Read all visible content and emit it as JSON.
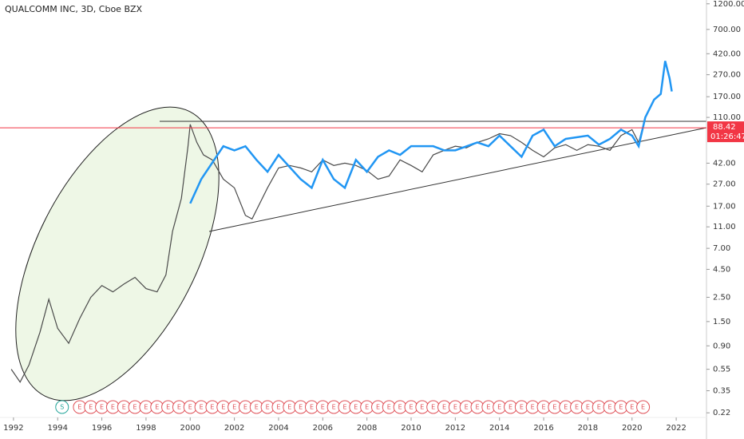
{
  "chart_data": {
    "type": "line",
    "title": "QUALCOMM INC, 3D, Cboe BZX",
    "log_scale": true,
    "xlim": [
      1991.39,
      2023.37
    ],
    "ylim": [
      0.15,
      1300
    ],
    "xticks": [
      1992,
      1994,
      1996,
      1998,
      2000,
      2002,
      2004,
      2006,
      2008,
      2010,
      2012,
      2014,
      2016,
      2018,
      2020,
      2022
    ],
    "yticks": [
      {
        "value": 0.22,
        "label": "0.22"
      },
      {
        "value": 0.35,
        "label": "0.35"
      },
      {
        "value": 0.55,
        "label": "0.55"
      },
      {
        "value": 0.9,
        "label": "0.90"
      },
      {
        "value": 1.5,
        "label": "1.50"
      },
      {
        "value": 2.5,
        "label": "2.50"
      },
      {
        "value": 4.5,
        "label": "4.50"
      },
      {
        "value": 7,
        "label": "7.00"
      },
      {
        "value": 11,
        "label": "11.00"
      },
      {
        "value": 17,
        "label": "17.00"
      },
      {
        "value": 27,
        "label": "27.00"
      },
      {
        "value": 42,
        "label": "42.00"
      },
      {
        "value": 110,
        "label": "110.00"
      },
      {
        "value": 170,
        "label": "170.00"
      },
      {
        "value": 270,
        "label": "270.00"
      },
      {
        "value": 420,
        "label": "420.00"
      },
      {
        "value": 700,
        "label": "700.00"
      },
      {
        "value": 1200,
        "label": "1200.00"
      }
    ],
    "series": [
      {
        "color": "#4a4a4a",
        "x": [
          1991.9,
          1992.3,
          1992.7,
          1993.2,
          1993.6,
          1994.0,
          1994.5,
          1995.0,
          1995.5,
          1996.0,
          1996.5,
          1997.0,
          1997.5,
          1998.0,
          1998.5,
          1998.9,
          1999.2,
          1999.6,
          1999.9,
          2000.0,
          2000.3,
          2000.6,
          2001.0,
          2001.5,
          2002.0,
          2002.5,
          2002.8,
          2003.5,
          2004.0,
          2004.5,
          2005.0,
          2005.5,
          2006.0,
          2006.5,
          2007.0,
          2007.5,
          2008.0,
          2008.5,
          2009.0,
          2009.5,
          2010.0,
          2010.5,
          2011.0,
          2011.5,
          2012.0,
          2012.5,
          2013.0,
          2013.5,
          2014.0,
          2014.5,
          2015.0,
          2015.5,
          2016.0,
          2016.5,
          2017.0,
          2017.5,
          2018.0,
          2018.5,
          2019.0,
          2019.5,
          2020.0,
          2020.3,
          2020.6
        ],
        "values": [
          0.55,
          0.42,
          0.6,
          1.2,
          2.4,
          1.3,
          0.95,
          1.6,
          2.5,
          3.2,
          2.8,
          3.3,
          3.8,
          3.0,
          2.8,
          4.0,
          10,
          20,
          60,
          95,
          65,
          50,
          45,
          30,
          25,
          14,
          13,
          25,
          38,
          40,
          38,
          35,
          45,
          40,
          42,
          40,
          36,
          30,
          32,
          45,
          40,
          35,
          50,
          55,
          60,
          58,
          65,
          70,
          78,
          75,
          65,
          55,
          48,
          58,
          62,
          55,
          62,
          60,
          55,
          75,
          85,
          65,
          110
        ]
      },
      {
        "color": "#2196f3",
        "x": [
          2000.0,
          2000.5,
          2001.5,
          2002.0,
          2002.5,
          2003.0,
          2003.5,
          2004.0,
          2005.0,
          2005.5,
          2006.0,
          2006.5,
          2007.0,
          2007.5,
          2008.0,
          2008.5,
          2009.0,
          2009.5,
          2010.0,
          2011.0,
          2011.5,
          2012.0,
          2013.0,
          2013.5,
          2014.0,
          2014.5,
          2015.0,
          2015.5,
          2016.0,
          2016.5,
          2017.0,
          2018.0,
          2018.5,
          2019.0,
          2019.5,
          2020.0,
          2020.3,
          2020.6,
          2021.0,
          2021.3,
          2021.5,
          2021.7,
          2021.8
        ],
        "values": [
          18,
          30,
          60,
          55,
          60,
          45,
          35,
          50,
          30,
          25,
          45,
          30,
          25,
          45,
          35,
          48,
          55,
          50,
          60,
          60,
          55,
          55,
          65,
          60,
          75,
          60,
          48,
          75,
          85,
          60,
          70,
          75,
          62,
          70,
          85,
          75,
          60,
          110,
          160,
          180,
          360,
          250,
          190
        ]
      }
    ],
    "last_price": {
      "value": 88.42,
      "label": "88.42",
      "color": "#f23645"
    },
    "countdown": "01:26:47",
    "splits": {
      "label": "S",
      "x": [
        1994.2
      ]
    },
    "earnings": {
      "label": "E",
      "x": [
        1995.0,
        1995.5,
        1996.0,
        1996.5,
        1997.0,
        1997.5,
        1998.0,
        1998.5,
        1999.0,
        1999.5,
        2000.0,
        2000.5,
        2001.0,
        2001.5,
        2002.0,
        2002.5,
        2003.0,
        2003.5,
        2004.0,
        2004.5,
        2005.0,
        2005.5,
        2006.0,
        2006.5,
        2007.0,
        2007.5,
        2008.0,
        2008.5,
        2009.0,
        2009.5,
        2010.0,
        2010.5,
        2011.0,
        2011.5,
        2012.0,
        2012.5,
        2013.0,
        2013.5,
        2014.0,
        2014.5,
        2015.0,
        2015.5,
        2016.0,
        2016.5,
        2017.0,
        2017.5,
        2018.0,
        2018.5,
        2019.0,
        2019.5,
        2020.0,
        2020.5
      ]
    }
  }
}
